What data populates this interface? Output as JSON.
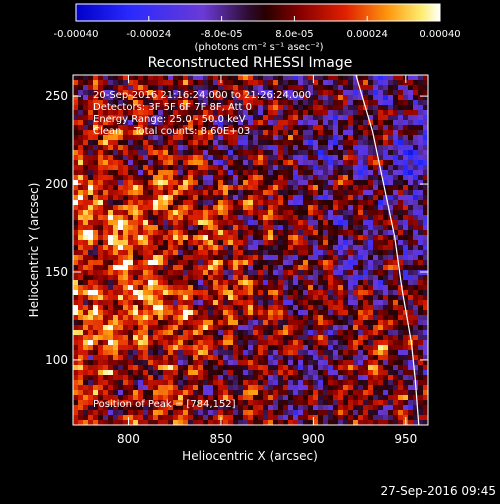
{
  "chart_data": {
    "type": "heatmap",
    "title": "Reconstructed RHESSI Image",
    "xlabel": "Heliocentric X (arcsec)",
    "ylabel": "Heliocentric Y (arcsec)",
    "xlim": [
      770,
      962
    ],
    "ylim": [
      63,
      262
    ],
    "xticks": [
      800,
      850,
      900,
      950
    ],
    "yticks": [
      100,
      150,
      200,
      250
    ],
    "colorbar": {
      "ticks": [
        "-0.00040",
        "-0.00024",
        "-8.0e-05",
        "8.0e-05",
        "0.00024",
        "0.00040"
      ],
      "range": [
        -0.0004,
        0.0004
      ],
      "unit": "(photons cm⁻² s⁻¹ asec⁻²)"
    },
    "annotations": [
      "20-Sep-2016 21:16:24.000 to 21:26:24.000",
      "Detectors: 3F 5F 6F 7F 8F, Att 0",
      "Energy Range: 25.0 - 50.0 keV",
      "Clean    Total counts: 8.60E+03"
    ],
    "peak_text": "Position of Peak = [784,152]",
    "peak": {
      "x": 784,
      "y": 152
    },
    "limb_curve_x": [
      [
        262,
        923
      ],
      [
        230,
        932
      ],
      [
        200,
        938
      ],
      [
        170,
        944
      ],
      [
        140,
        948
      ],
      [
        110,
        953
      ],
      [
        90,
        955
      ],
      [
        63,
        957
      ]
    ],
    "timestamp": "27-Sep-2016 09:45"
  }
}
